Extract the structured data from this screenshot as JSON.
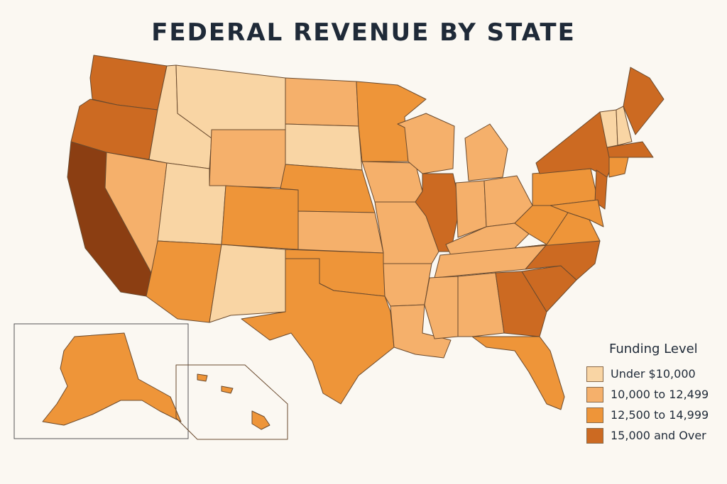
{
  "title": "FEDERAL REVENUE BY STATE",
  "legend": {
    "title": "Funding Level",
    "items": [
      {
        "label": "Under $10,000",
        "color": "#f9d5a4"
      },
      {
        "label": "10,000 to 12,499",
        "color": "#f5b06b"
      },
      {
        "label": "12,500 to 14,999",
        "color": "#ee9539"
      },
      {
        "label": "15,000 and Over",
        "color": "#cc6a22"
      }
    ]
  },
  "extra_color": "#8b3e12",
  "states": {
    "WA": 3,
    "OR": 3,
    "CA": 4,
    "NV": 1,
    "ID": 0,
    "MT": 0,
    "WY": 1,
    "UT": 0,
    "AZ": 2,
    "NM": 0,
    "CO": 2,
    "ND": 1,
    "SD": 0,
    "NE": 2,
    "KS": 1,
    "OK": 2,
    "TX": 2,
    "MN": 2,
    "IA": 1,
    "MO": 1,
    "AR": 1,
    "LA": 1,
    "WI": 1,
    "IL": 3,
    "MI": 1,
    "IN": 1,
    "OH": 1,
    "KY": 1,
    "TN": 1,
    "MS": 1,
    "AL": 1,
    "GA": 3,
    "FL": 2,
    "SC": 3,
    "NC": 3,
    "VA": 2,
    "WV": 2,
    "PA": 2,
    "NY": 3,
    "ME": 3,
    "VT": 0,
    "NH": 0,
    "MA": 3,
    "CT": 2,
    "NJ": 3,
    "MD": 2,
    "AK": 2,
    "HI": 2
  }
}
